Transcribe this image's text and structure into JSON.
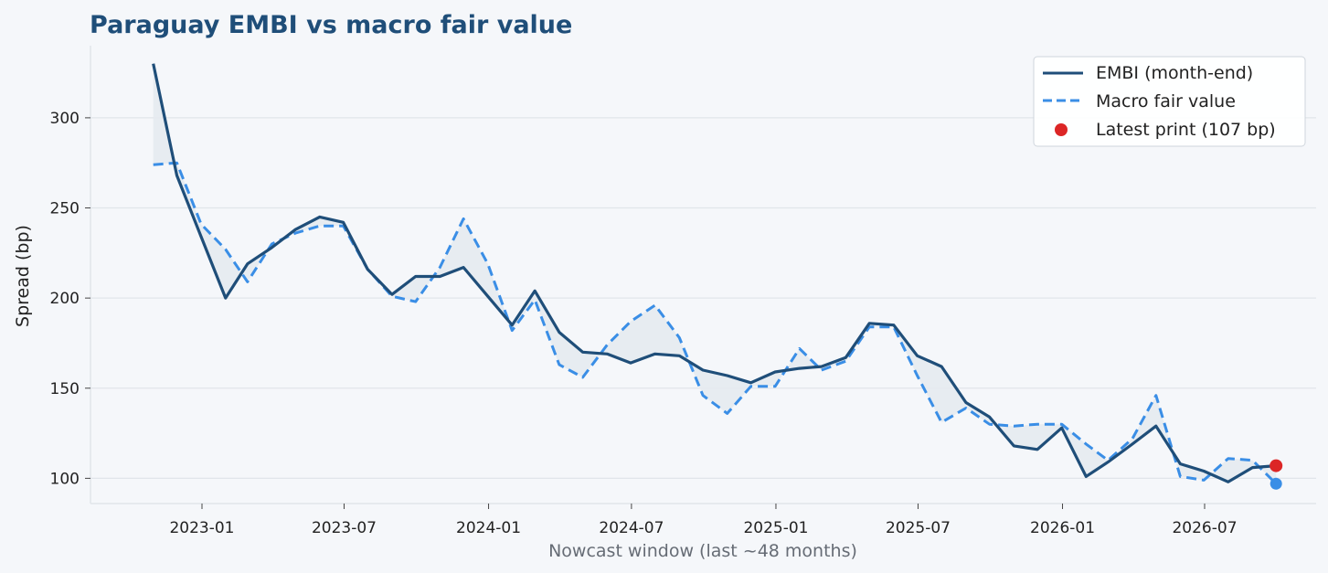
{
  "chart_data": {
    "type": "line",
    "title": "Paraguay EMBI vs macro fair value",
    "xlabel": "Nowcast window (last ~48 months)",
    "ylabel": "Spread (bp)",
    "x_start": "2022-10",
    "x_ticks": [
      "2023-01",
      "2023-07",
      "2024-01",
      "2024-07",
      "2025-01",
      "2025-07",
      "2026-01",
      "2026-07"
    ],
    "y_ticks": [
      100,
      150,
      200,
      250,
      300
    ],
    "xlim": [
      "2022-08-12",
      "2026-11-20"
    ],
    "ylim": [
      86,
      340
    ],
    "grid": "horizontal",
    "legend_position": "top-right",
    "colors": {
      "embi": "#1f4e79",
      "fair": "#3a8ee6",
      "latest": "#dc2626",
      "gap_fill": "#e6eaf0"
    },
    "series": [
      {
        "name": "EMBI (month-end)",
        "style": "solid",
        "values": [
          330,
          268,
          234,
          200,
          219,
          228,
          238,
          245,
          242,
          216,
          202,
          212,
          212,
          217,
          201,
          185,
          204,
          181,
          170,
          169,
          164,
          169,
          168,
          160,
          157,
          153,
          159,
          161,
          162,
          167,
          186,
          185,
          168,
          162,
          142,
          134,
          118,
          116,
          128,
          101,
          109,
          119,
          129,
          108,
          104,
          98,
          106,
          107
        ]
      },
      {
        "name": "Macro fair value",
        "style": "dashed",
        "values": [
          274,
          275,
          241,
          227,
          209,
          230,
          236,
          240,
          240,
          216,
          201,
          198,
          217,
          244,
          219,
          182,
          199,
          163,
          156,
          174,
          187,
          196,
          178,
          146,
          136,
          151,
          151,
          172,
          160,
          165,
          184,
          184,
          157,
          131,
          139,
          130,
          129,
          130,
          130,
          119,
          110,
          122,
          146,
          101,
          99,
          111,
          110,
          97
        ]
      }
    ],
    "latest": {
      "label": "Latest print (107 bp)",
      "embi_value": 107,
      "fair_value": 97
    }
  }
}
